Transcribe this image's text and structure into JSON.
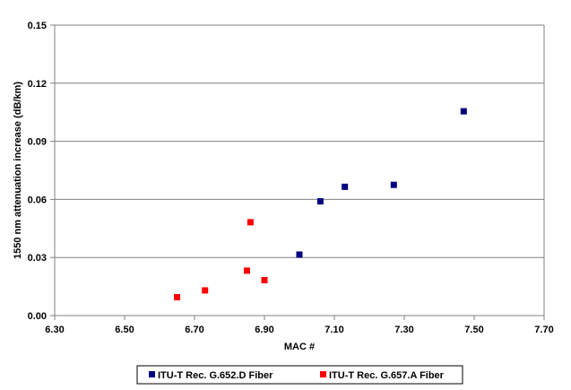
{
  "chart_data": {
    "type": "scatter",
    "title": "",
    "xlabel": "MAC #",
    "ylabel": "1550 nm attenuation increase (dB/km)",
    "xlim": [
      6.3,
      7.7
    ],
    "ylim": [
      0.0,
      0.15
    ],
    "x_ticks": [
      "6.30",
      "6.50",
      "6.70",
      "6.90",
      "7.10",
      "7.30",
      "7.50",
      "7.70"
    ],
    "y_ticks": [
      "0.00",
      "0.03",
      "0.06",
      "0.09",
      "0.12",
      "0.15"
    ],
    "grid": "horizontal",
    "legend_position": "bottom",
    "series": [
      {
        "name": "ITU-T Rec. G.652.D Fiber",
        "color": "#000080",
        "marker": "square",
        "points": [
          {
            "x": 7.0,
            "y": 0.0315
          },
          {
            "x": 7.06,
            "y": 0.059
          },
          {
            "x": 7.13,
            "y": 0.0665
          },
          {
            "x": 7.27,
            "y": 0.0675
          },
          {
            "x": 7.47,
            "y": 0.1055
          }
        ]
      },
      {
        "name": "ITU-T Rec. G.657.A Fiber",
        "color": "#ff0000",
        "marker": "square",
        "points": [
          {
            "x": 6.65,
            "y": 0.0095
          },
          {
            "x": 6.73,
            "y": 0.013
          },
          {
            "x": 6.85,
            "y": 0.0232
          },
          {
            "x": 6.86,
            "y": 0.0482
          },
          {
            "x": 6.9,
            "y": 0.0183
          }
        ]
      }
    ]
  }
}
